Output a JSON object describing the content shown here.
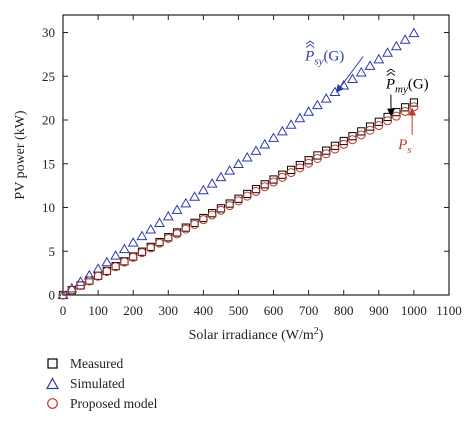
{
  "chart_data": {
    "type": "scatter",
    "xlabel": "Solar irradiance (W/m²)",
    "ylabel": "PV power (kW)",
    "xlim": [
      0,
      1100
    ],
    "ylim": [
      0,
      32
    ],
    "xticks": [
      0,
      100,
      200,
      300,
      400,
      500,
      600,
      700,
      800,
      900,
      1000,
      1100
    ],
    "yticks": [
      0,
      5,
      10,
      15,
      20,
      25,
      30
    ],
    "grid": false,
    "legend_position": "below",
    "x": [
      0,
      25,
      50,
      75,
      100,
      125,
      150,
      175,
      200,
      225,
      250,
      275,
      300,
      325,
      350,
      375,
      400,
      425,
      450,
      475,
      500,
      525,
      550,
      575,
      600,
      625,
      650,
      675,
      700,
      725,
      750,
      775,
      800,
      825,
      850,
      875,
      900,
      925,
      950,
      975,
      1000
    ],
    "series": [
      {
        "name": "Measured",
        "marker": "square",
        "color": "#000000",
        "values": [
          0,
          0.55,
          1.1,
          1.65,
          2.2,
          2.75,
          3.3,
          3.85,
          4.4,
          4.95,
          5.5,
          6.05,
          6.6,
          7.15,
          7.7,
          8.25,
          8.8,
          9.35,
          9.9,
          10.45,
          11.0,
          11.55,
          12.1,
          12.65,
          13.2,
          13.75,
          14.3,
          14.85,
          15.4,
          15.95,
          16.5,
          17.05,
          17.6,
          18.15,
          18.7,
          19.25,
          19.8,
          20.35,
          20.9,
          21.45,
          22.0
        ]
      },
      {
        "name": "Simulated",
        "marker": "triangle",
        "color": "#2b3aa8",
        "values": [
          0,
          0.75,
          1.5,
          2.24,
          2.99,
          3.74,
          4.49,
          5.24,
          5.98,
          6.73,
          7.48,
          8.23,
          8.98,
          9.72,
          10.47,
          11.22,
          11.97,
          12.72,
          13.46,
          14.21,
          14.96,
          15.71,
          16.46,
          17.2,
          17.95,
          18.7,
          19.45,
          20.2,
          20.94,
          21.69,
          22.44,
          23.19,
          23.94,
          24.68,
          25.43,
          26.18,
          26.93,
          27.68,
          28.42,
          29.17,
          29.92
        ]
      },
      {
        "name": "Proposed model",
        "marker": "circle",
        "color": "#c0392b",
        "values": [
          0,
          0.54,
          1.08,
          1.61,
          2.15,
          2.69,
          3.23,
          3.77,
          4.3,
          4.84,
          5.38,
          5.92,
          6.46,
          6.99,
          7.53,
          8.07,
          8.61,
          9.15,
          9.68,
          10.22,
          10.76,
          11.3,
          11.84,
          12.37,
          12.91,
          13.45,
          13.99,
          14.53,
          15.06,
          15.6,
          16.14,
          16.68,
          17.22,
          17.75,
          18.29,
          18.83,
          19.37,
          19.91,
          20.44,
          20.98,
          21.52
        ]
      }
    ],
    "annotations": [
      {
        "id": "psy",
        "base": "P",
        "sub": "sy",
        "suffix": "(G)",
        "hat": "double",
        "color": "#2b3aa8",
        "x": 690,
        "y": 26.8,
        "arrow_to": [
          780,
          23.2
        ]
      },
      {
        "id": "pmy",
        "base": "P",
        "sub": "my",
        "suffix": "(G)",
        "hat": "double",
        "color": "#000000",
        "x": 920,
        "y": 23.6,
        "arrow_to": [
          935,
          20.5
        ]
      },
      {
        "id": "ps",
        "base": "P",
        "sub": "s",
        "suffix": "",
        "hat": "none",
        "color": "#c0392b",
        "x": 955,
        "y": 16.7,
        "arrow_to": [
          995,
          21.3
        ]
      }
    ]
  },
  "legend": {
    "items": [
      {
        "label": "Measured",
        "marker": "square",
        "color": "#000000"
      },
      {
        "label": "Simulated",
        "marker": "triangle",
        "color": "#2b3aa8"
      },
      {
        "label": "Proposed model",
        "marker": "circle",
        "color": "#c0392b"
      }
    ]
  }
}
